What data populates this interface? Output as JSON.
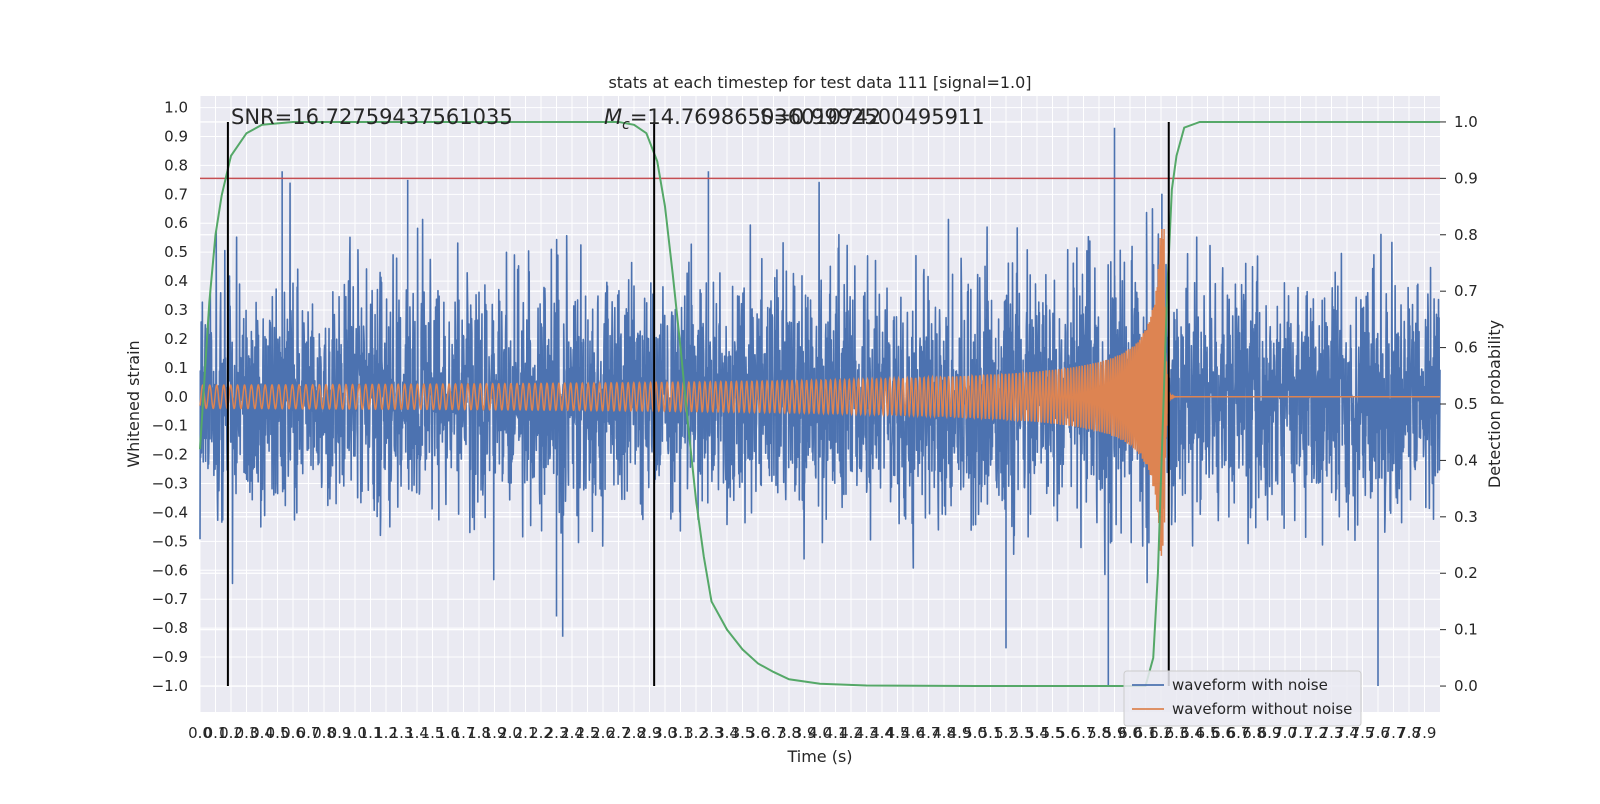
{
  "chart_data": {
    "type": "line",
    "title": "stats at each timestep for test data 111 [signal=1.0]",
    "xlabel": "Time (s)",
    "ylabel": "Whitened strain",
    "y2label": "Detection probability",
    "xlim": [
      0.0,
      8.0
    ],
    "ylim": [
      -1.09,
      1.04
    ],
    "y2lim": [
      -0.046,
      1.046
    ],
    "x_ticks_step": 0.1,
    "x_ticks_max": 7.9,
    "y_ticks": [
      -1.0,
      -0.9,
      -0.8,
      -0.7,
      -0.6,
      -0.5,
      -0.4,
      -0.3,
      -0.2,
      -0.1,
      0.0,
      0.1,
      0.2,
      0.3,
      0.4,
      0.5,
      0.6,
      0.7,
      0.8,
      0.9,
      1.0
    ],
    "y2_ticks": [
      0.0,
      0.1,
      0.2,
      0.3,
      0.4,
      0.5,
      0.6,
      0.7,
      0.8,
      0.9,
      1.0
    ],
    "grid": true,
    "legend_placement": "lower right",
    "annotations": {
      "snr": "SNR=16.72759437561035",
      "mc_prefix": "M",
      "mc_subscript": "c",
      "mc_value": "=14.769865036010742",
      "chi": "S=0.9992500495911"
    },
    "threshold_line": {
      "value": 0.9,
      "axis": "right",
      "color": "#c44e52"
    },
    "vertical_markers": [
      0.18,
      2.93,
      6.25
    ],
    "series": [
      {
        "name": "waveform with noise",
        "color": "#4c72b0",
        "axis": "left",
        "kind": "noise",
        "amplitude_rms": 0.2,
        "peaks": [
          {
            "x": 0.53,
            "y": 0.78
          },
          {
            "x": 1.34,
            "y": 0.75
          },
          {
            "x": 2.3,
            "y": -0.76
          },
          {
            "x": 3.28,
            "y": 0.78
          },
          {
            "x": 5.9,
            "y": 0.93
          },
          {
            "x": 5.86,
            "y": -1.0
          },
          {
            "x": 7.6,
            "y": -1.0
          },
          {
            "x": 2.34,
            "y": -0.83
          },
          {
            "x": 5.2,
            "y": -0.87
          }
        ]
      },
      {
        "name": "waveform without noise",
        "color": "#dd8452",
        "axis": "left",
        "kind": "chirp",
        "merger_time": 6.22,
        "peak_amplitude": 0.58,
        "base_amplitude": 0.02
      },
      {
        "name": "detection probability",
        "color": "#55a868",
        "axis": "right",
        "points": [
          [
            0.0,
            0.42
          ],
          [
            0.03,
            0.55
          ],
          [
            0.06,
            0.68
          ],
          [
            0.1,
            0.8
          ],
          [
            0.14,
            0.87
          ],
          [
            0.2,
            0.94
          ],
          [
            0.3,
            0.98
          ],
          [
            0.4,
            0.995
          ],
          [
            0.6,
            1.0
          ],
          [
            2.7,
            1.0
          ],
          [
            2.8,
            0.995
          ],
          [
            2.88,
            0.98
          ],
          [
            2.95,
            0.93
          ],
          [
            3.0,
            0.85
          ],
          [
            3.05,
            0.73
          ],
          [
            3.1,
            0.6
          ],
          [
            3.15,
            0.46
          ],
          [
            3.2,
            0.33
          ],
          [
            3.25,
            0.23
          ],
          [
            3.3,
            0.15
          ],
          [
            3.4,
            0.1
          ],
          [
            3.5,
            0.065
          ],
          [
            3.6,
            0.04
          ],
          [
            3.7,
            0.025
          ],
          [
            3.8,
            0.012
          ],
          [
            4.0,
            0.004
          ],
          [
            4.3,
            0.001
          ],
          [
            5.0,
            0.0
          ],
          [
            6.1,
            0.0
          ],
          [
            6.15,
            0.05
          ],
          [
            6.18,
            0.2
          ],
          [
            6.21,
            0.45
          ],
          [
            6.24,
            0.7
          ],
          [
            6.27,
            0.88
          ],
          [
            6.3,
            0.94
          ],
          [
            6.35,
            0.99
          ],
          [
            6.45,
            1.0
          ],
          [
            8.0,
            1.0
          ]
        ]
      }
    ]
  }
}
